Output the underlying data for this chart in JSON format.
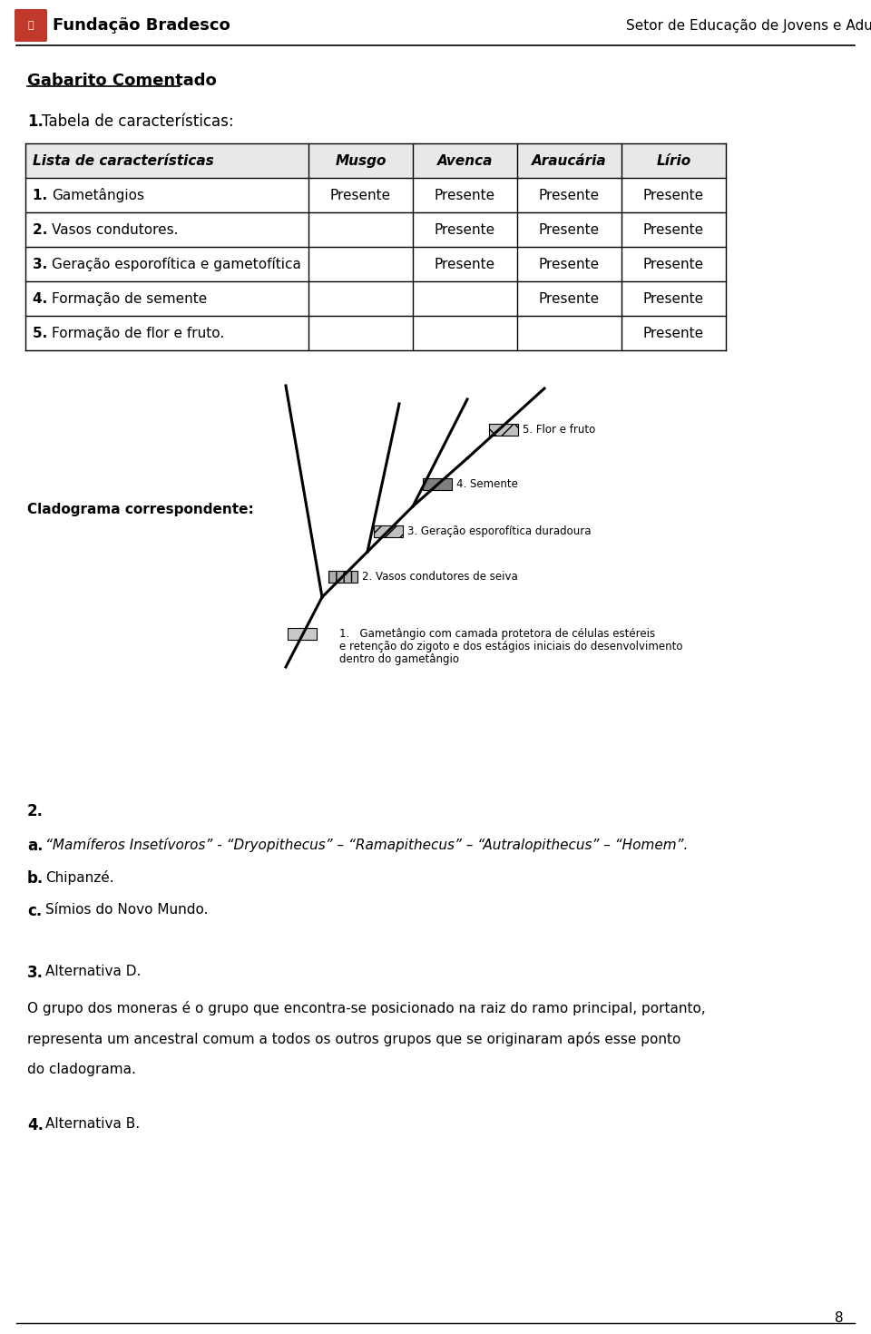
{
  "page_width": 9.6,
  "page_height": 14.7,
  "bg_color": "#ffffff",
  "header_logo_text": "Fundação Bradesco",
  "header_right_text": "Setor de Educação de Jovens e Adultos",
  "section1_title": "Gabarito Comentado",
  "item1_label": "1. Tabela de características:",
  "table_headers": [
    "Lista de características",
    "Musgo",
    "Avenca",
    "Araucária",
    "Lírio"
  ],
  "table_rows": [
    [
      "1. Gametângios",
      "Presente",
      "Presente",
      "Presente",
      "Presente"
    ],
    [
      "2. Vasos condutores.",
      "",
      "Presente",
      "Presente",
      "Presente"
    ],
    [
      "3. Geração esporofítica e gametofítica",
      "",
      "Presente",
      "Presente",
      "Presente"
    ],
    [
      "4. Formação de semente",
      "",
      "",
      "Presente",
      "Presente"
    ],
    [
      "5. Formação de flor e fruto.",
      "",
      "",
      "",
      "Presente"
    ]
  ],
  "cladogram_label": "Cladograma correspondente:",
  "item2_label": "2.",
  "item2a_label": "a.",
  "item2a_text": "“Mamíferos Insetívoros” - “Dryopithecus” – “Ramapithecus” – “Autralopithecus” – “Homem”.",
  "item2b_label": "b.",
  "item2b_text": "Chipanzé.",
  "item2c_label": "c.",
  "item2c_text": "Símios do Novo Mundo.",
  "item3_label": "3.",
  "item3_text": "Alternativa D.",
  "item3_para1": "O grupo dos moneras é o grupo que encontra-se posicionado na raiz do ramo principal, portanto,",
  "item3_para2": "representa um ancestral comum a todos os outros grupos que se originaram após esse ponto",
  "item3_para3": "do cladograma.",
  "item4_label": "4.",
  "item4_text": "Alternativa B.",
  "page_number": "8",
  "annot1_text": "1.   Gametângio com camada protetora de células estéreis",
  "annot1b_text": "e retenção do zigoto e dos estágios iniciais do desenvolvimento",
  "annot1c_text": "dentro do gametângio",
  "annot2_text": "2. Vasos condutores de seiva",
  "annot3_text": "3. Geração esporofítica duradoura",
  "annot4_text": "4. Semente",
  "annot5_text": "5. Flor e fruto"
}
